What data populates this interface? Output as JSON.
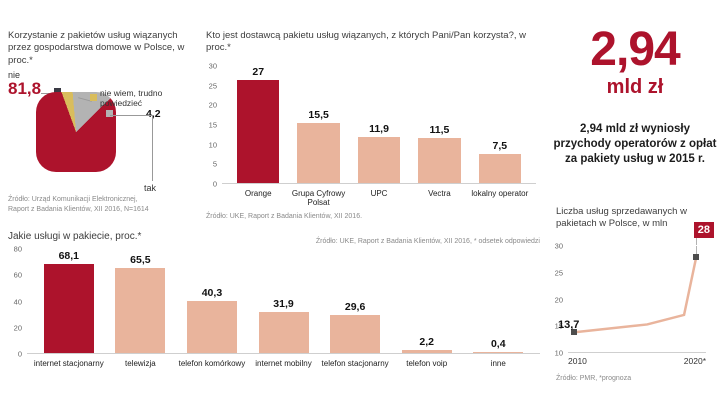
{
  "colors": {
    "accent": "#ad132c",
    "salmon": "#e9b49c",
    "yellow": "#d9bd5c",
    "gray_slice": "#b3b3b3",
    "plot_bg": "#ececec",
    "leader": "#999999"
  },
  "big_stat": {
    "number": "2,94",
    "unit": "mld zł",
    "text": "2,94 mld zł wyniosły przychody operatorów z opłat za pakiety usług w 2015 r."
  },
  "chart_data": [
    {
      "type": "pie",
      "title": "Korzystanie z pakietów usług wiązanych przez gospodarstwa domowe w Polsce, w proc.*",
      "slices": [
        {
          "label": "nie wiem, trudno powiedzieć",
          "value": 4.2,
          "value_label": "4,2",
          "color": "#d9bd5c"
        },
        {
          "label": "tak",
          "value": 14.0,
          "value_label": "",
          "color": "#b3b3b3"
        },
        {
          "label": "nie",
          "value": 81.8,
          "value_label": "81,8",
          "color": "#ad132c"
        }
      ],
      "source": "Źródło: Urząd Komunikacji Elektronicznej,\nRaport z Badania Klientów, XII 2016, N=1614"
    },
    {
      "type": "bar",
      "title": "Kto jest dostawcą pakietu usług wiązanych, z których Pani/Pan korzysta?, w proc.*",
      "categories": [
        "Orange",
        "Grupa Cyfrowy Polsat",
        "UPC",
        "Vectra",
        "lokalny operator"
      ],
      "values": [
        27,
        15.5,
        11.9,
        11.5,
        7.5
      ],
      "value_labels": [
        "27",
        "15,5",
        "11,9",
        "11,5",
        "7,5"
      ],
      "ylim": [
        0,
        30
      ],
      "yticks": [
        0,
        5,
        10,
        15,
        20,
        25,
        30
      ],
      "highlight_index": 0,
      "source": "Źródło: UKE, Raport z Badania Klientów, XII 2016."
    },
    {
      "type": "bar",
      "title": "Jakie usługi w pakiecie, proc.*",
      "categories": [
        "internet stacjonarny",
        "telewizja",
        "telefon komórkowy",
        "internet mobilny",
        "telefon stacjonarny",
        "telefon voip",
        "inne"
      ],
      "values": [
        68.1,
        65.5,
        40.3,
        31.9,
        29.6,
        2.2,
        0.4
      ],
      "value_labels": [
        "68,1",
        "65,5",
        "40,3",
        "31,9",
        "29,6",
        "2,2",
        "0,4"
      ],
      "ylim": [
        0,
        80
      ],
      "yticks": [
        0,
        20,
        40,
        60,
        80
      ],
      "highlight_index": 0,
      "source": "Źródło: UKE, Raport z Badania Klientów, XII 2016, * odsetek odpowiedzi"
    },
    {
      "type": "line",
      "title": "Liczba usług sprzedawanych w pakietach w Polsce, w mln",
      "x": [
        2010,
        2016,
        2019,
        2020
      ],
      "values": [
        13.7,
        15.2,
        17.0,
        28
      ],
      "x_tick_labels": [
        "2010",
        "2020*"
      ],
      "ylim": [
        10,
        30
      ],
      "yticks": [
        10,
        15,
        20,
        25,
        30
      ],
      "start_label": "13,7",
      "end_label": "28",
      "source": "Źródło: PMR, *prognoza"
    }
  ]
}
